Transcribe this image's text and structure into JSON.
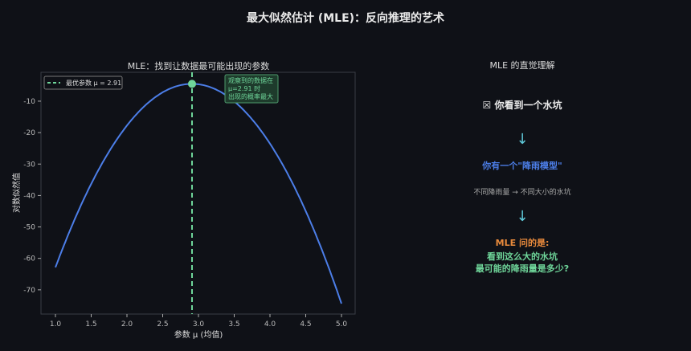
{
  "suptitle": "最大似然估计 (MLE)：反向推理的艺术",
  "chart_data": {
    "type": "line",
    "title": "MLE：找到让数据最可能出现的参数",
    "xlabel": "参数 μ (均值)",
    "ylabel": "对数似然值",
    "xlim": [
      0.8,
      5.2
    ],
    "ylim": [
      -77,
      1
    ],
    "xticks": [
      "1.0",
      "1.5",
      "2.0",
      "2.5",
      "3.0",
      "3.5",
      "4.0",
      "4.5",
      "5.0"
    ],
    "yticks": [
      "-10",
      "-20",
      "-30",
      "-40",
      "-50",
      "-60",
      "-70"
    ],
    "series": [
      {
        "x_range": [
          1.0,
          5.0
        ],
        "formula": "peak -4.5 at μ=2.91, ≈ -63 at μ=1.0, ≈ -74 at μ=5.0",
        "color": "#4c7ee8",
        "x": [
          1.0,
          1.25,
          1.5,
          1.75,
          2.0,
          2.25,
          2.5,
          2.75,
          2.91,
          3.0,
          3.25,
          3.5,
          3.75,
          4.0,
          4.25,
          4.5,
          4.75,
          5.0
        ],
        "y": [
          -62.9,
          -48.6,
          -36.3,
          -26.0,
          -17.7,
          -11.5,
          -7.2,
          -4.9,
          -4.5,
          -4.6,
          -6.3,
          -10.1,
          -15.8,
          -23.5,
          -33.2,
          -45.0,
          -58.7,
          -74.4
        ]
      }
    ],
    "optimum": {
      "x": 2.91,
      "y": -4.5,
      "label": "最优参数 μ = 2.91",
      "color": "#6fd69a"
    },
    "annotation": [
      "观察到的数据在",
      "μ=2.91 时",
      "出现的概率最大"
    ],
    "legend_position": "top-left",
    "grid": false
  },
  "panel": {
    "title": "MLE 的直觉理解",
    "step1": "☒ 你看到一个水坑",
    "arrow": "↓",
    "step2": "你有一个\"降雨模型\"",
    "step2_note": "不同降雨量 → 不同大小的水坑",
    "step3": "MLE 问的是:",
    "step4_line1": "看到这么大的水坑",
    "step4_line2": "最可能的降雨量是多少?"
  }
}
